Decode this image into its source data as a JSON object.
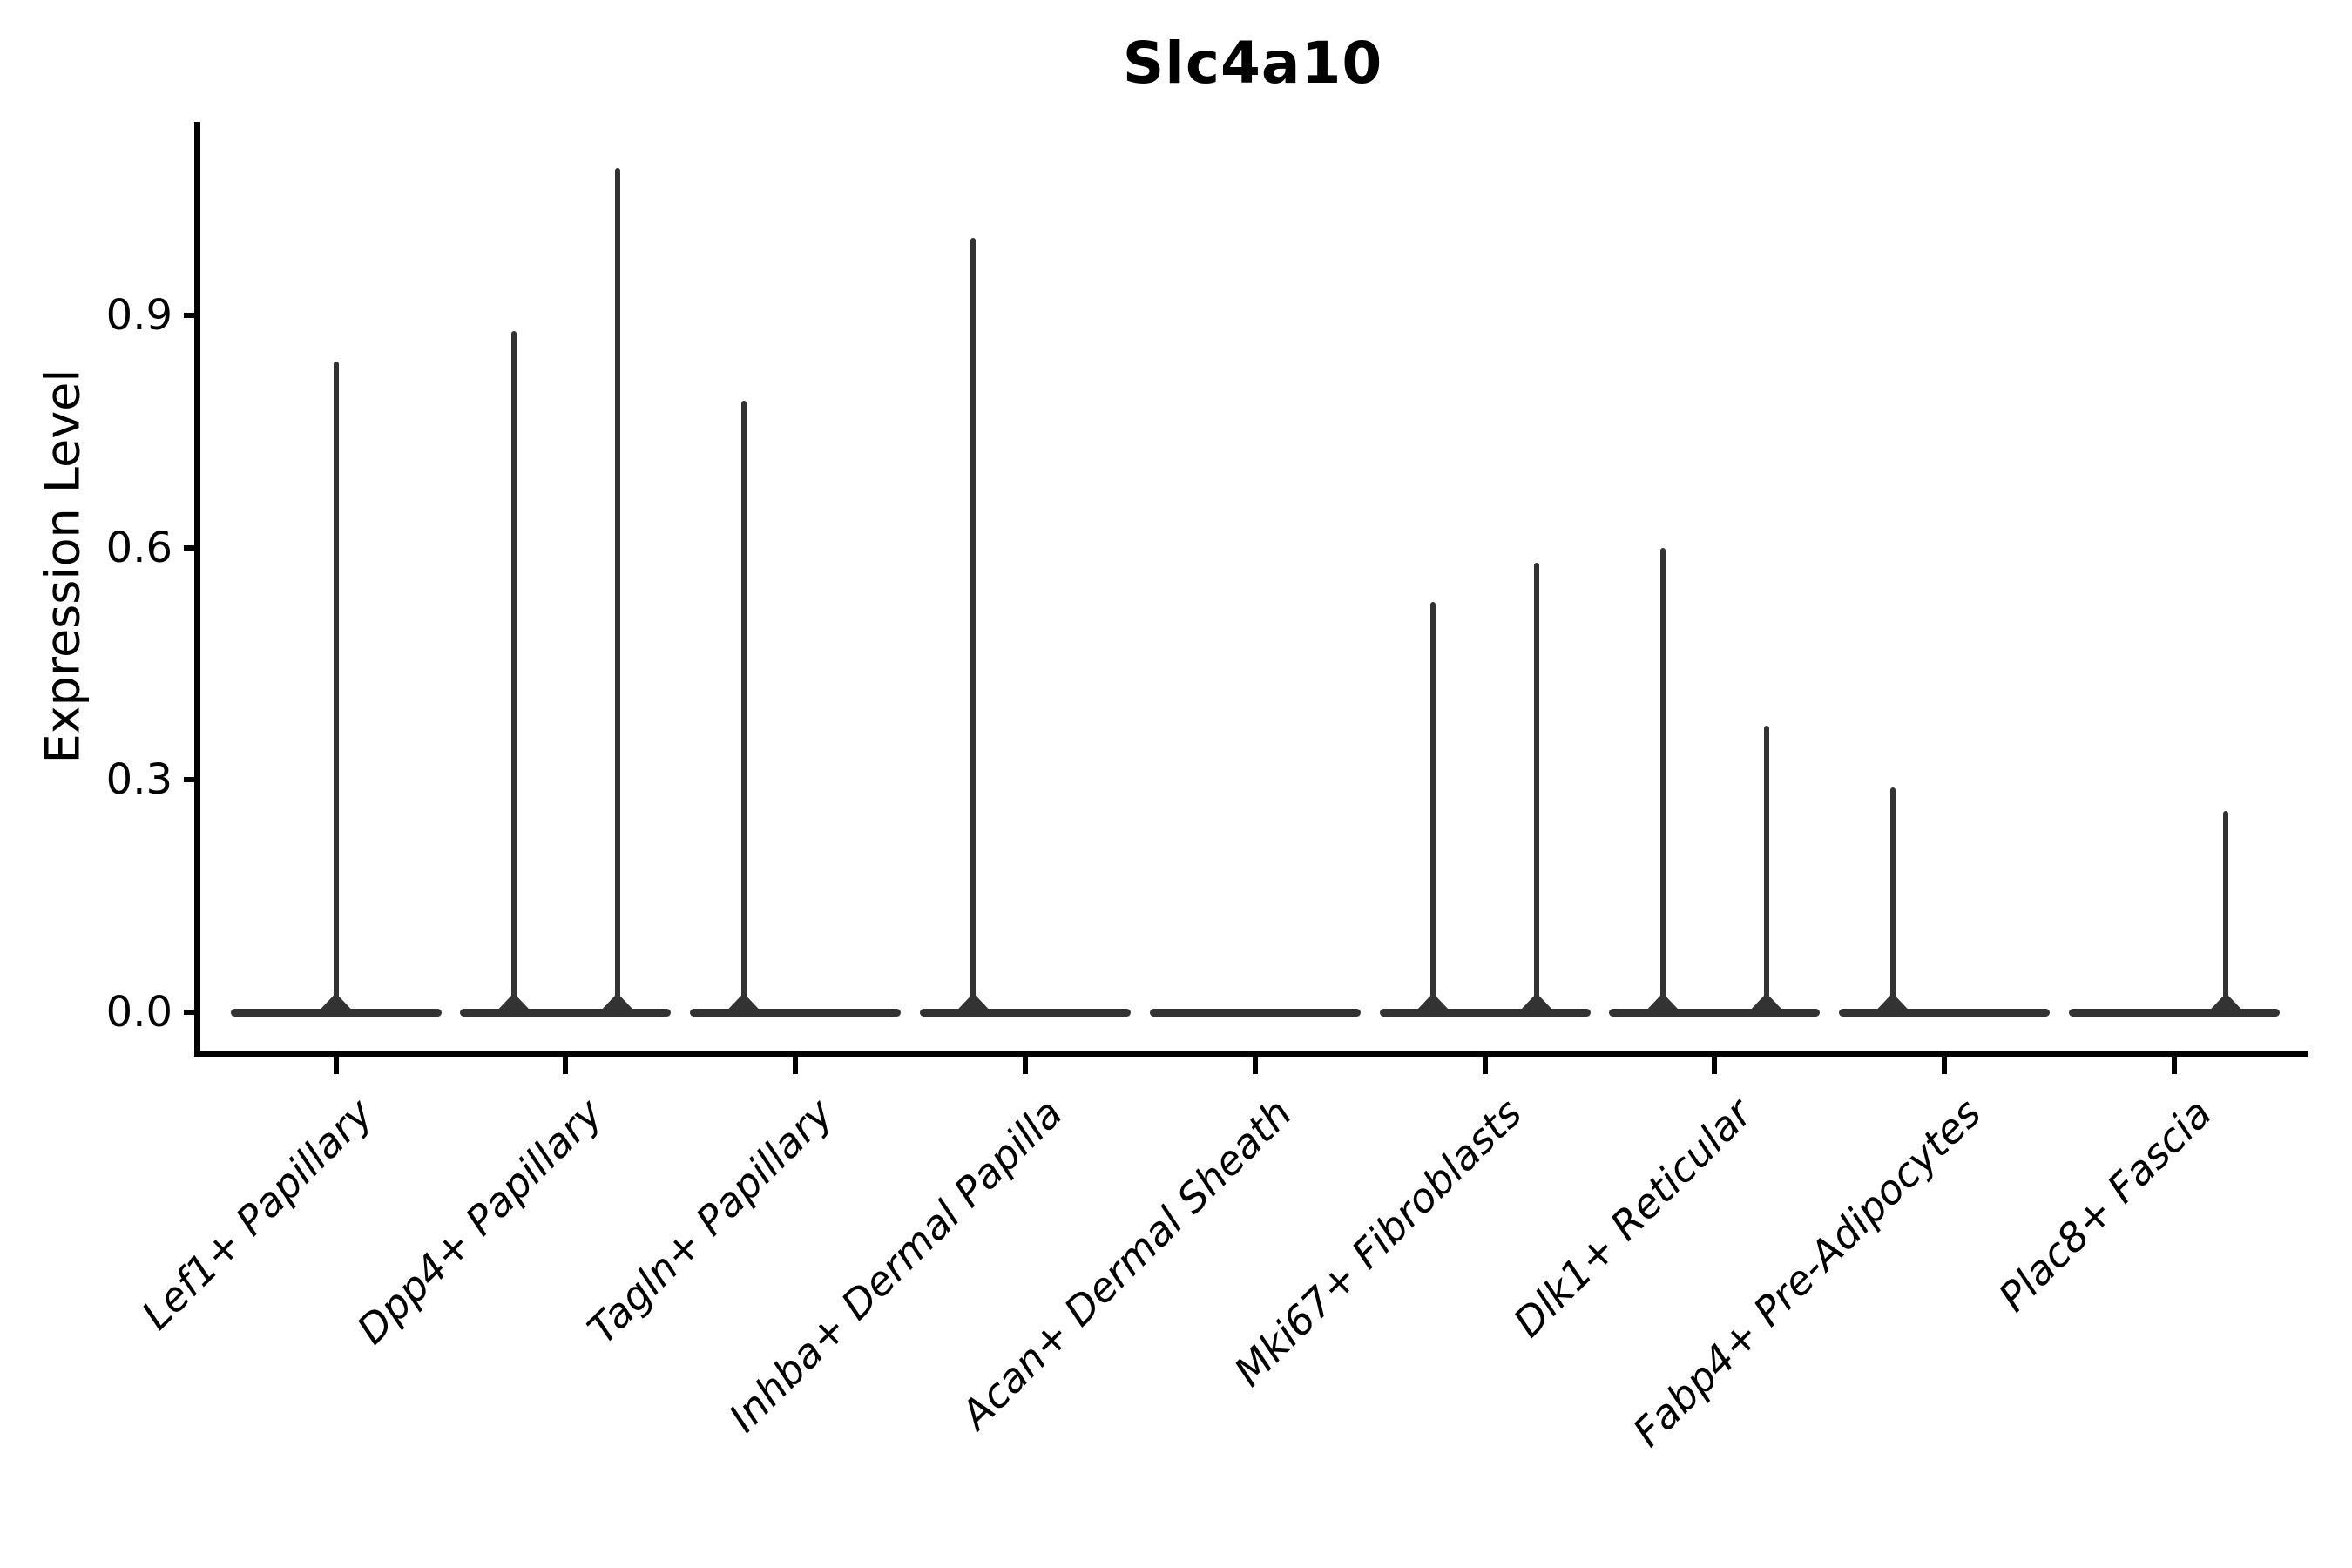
{
  "title": "Slc4a10",
  "y_axis": {
    "label": "Expression Level",
    "tick_labels": [
      "0.0",
      "0.3",
      "0.6",
      "0.9"
    ],
    "tick_values": [
      0.0,
      0.3,
      0.6,
      0.9
    ]
  },
  "x_axis": {
    "label": "",
    "categories": [
      "Lef1+ Papillary",
      "Dpp4+ Papillary",
      "Tagln+ Papillary",
      "Inhba+ Dermal Papilla",
      "Acan+ Dermal Sheath",
      "Mki67+ Fibroblasts",
      "Dlk1+ Reticular",
      "Fabp4+ Pre-Adipocytes",
      "Plac8+ Fascia"
    ]
  },
  "colors": {
    "violin_stroke": "#333333",
    "spine": "#000000",
    "text": "#000000",
    "background": "#ffffff"
  },
  "chart_data": {
    "type": "violin",
    "title": "Slc4a10",
    "xlabel": "",
    "ylabel": "Expression Level",
    "ylim": [
      -0.055,
      1.148
    ],
    "yticks": [
      0.0,
      0.3,
      0.6,
      0.9
    ],
    "grid": false,
    "legend": "none",
    "description": "Expression of Slc4a10 per fibroblast cluster; each violin is flat at 0 (most cells zero) with thin density spikes up to the category maximum; several categories show two split-violin spikes offset left/right of the category center",
    "categories": [
      "Lef1+ Papillary",
      "Dpp4+ Papillary",
      "Tagln+ Papillary",
      "Inhba+ Dermal Papilla",
      "Acan+ Dermal Sheath",
      "Mki67+ Fibroblasts",
      "Dlk1+ Reticular",
      "Fabp4+ Pre-Adipocytes",
      "Plac8+ Fascia"
    ],
    "violins": [
      {
        "category": "Lef1+ Papillary",
        "body_value": 0.0,
        "spikes": [
          {
            "offset": "center",
            "max": 0.84
          }
        ]
      },
      {
        "category": "Dpp4+ Papillary",
        "body_value": 0.0,
        "spikes": [
          {
            "offset": "left",
            "max": 0.88
          },
          {
            "offset": "right",
            "max": 1.09
          }
        ]
      },
      {
        "category": "Tagln+ Papillary",
        "body_value": 0.0,
        "spikes": [
          {
            "offset": "left",
            "max": 0.79
          }
        ]
      },
      {
        "category": "Inhba+ Dermal Papilla",
        "body_value": 0.0,
        "spikes": [
          {
            "offset": "left",
            "max": 1.0
          }
        ]
      },
      {
        "category": "Acan+ Dermal Sheath",
        "body_value": 0.0,
        "spikes": []
      },
      {
        "category": "Mki67+ Fibroblasts",
        "body_value": 0.0,
        "spikes": [
          {
            "offset": "left",
            "max": 0.53
          },
          {
            "offset": "right",
            "max": 0.58
          }
        ]
      },
      {
        "category": "Dlk1+ Reticular",
        "body_value": 0.0,
        "spikes": [
          {
            "offset": "left",
            "max": 0.6
          },
          {
            "offset": "right",
            "max": 0.37
          }
        ]
      },
      {
        "category": "Fabp4+ Pre-Adipocytes",
        "body_value": 0.0,
        "spikes": [
          {
            "offset": "left",
            "max": 0.29
          }
        ]
      },
      {
        "category": "Plac8+ Fascia",
        "body_value": 0.0,
        "spikes": [
          {
            "offset": "right",
            "max": 0.26
          }
        ]
      }
    ]
  }
}
